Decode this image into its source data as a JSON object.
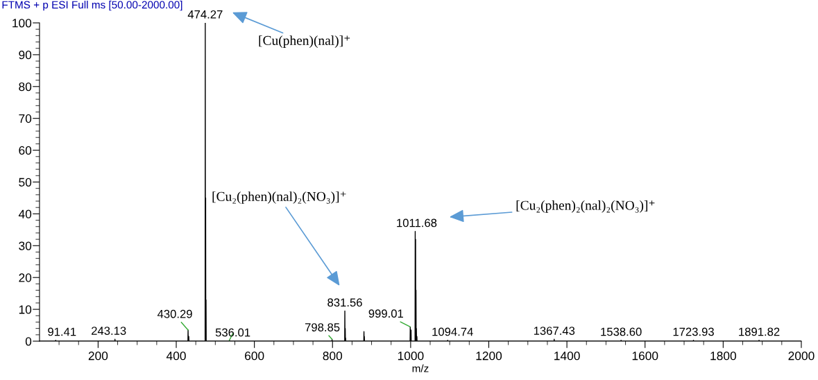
{
  "chart_data": {
    "type": "line",
    "title": "FTMS + p ESI Full ms [50.00-2000.00]",
    "xlabel": "m/z",
    "series": [
      {
        "color": "#000000",
        "x": [
          50,
          91.0,
          91.41,
          91.8,
          242.7,
          243.13,
          243.6,
          429.9,
          430.29,
          430.7,
          431.6,
          432.0,
          432.4,
          473.9,
          474.27,
          474.7,
          474.9,
          475.27,
          475.7,
          475.9,
          476.27,
          476.7,
          535.6,
          536.01,
          536.4,
          798.4,
          798.85,
          799.3,
          831.2,
          831.56,
          832.0,
          832.2,
          832.56,
          833.0,
          833.2,
          833.5,
          833.9,
          880.1,
          880.5,
          880.9,
          881.1,
          881.5,
          881.9,
          998.6,
          999.01,
          999.4,
          1000.6,
          1001.0,
          1001.4,
          1011.3,
          1011.68,
          1012.1,
          1012.3,
          1012.68,
          1013.1,
          1013.3,
          1013.68,
          1014.1,
          1014.3,
          1014.68,
          1015.1,
          1015.6,
          1016.0,
          1016.4,
          1094.3,
          1094.74,
          1095.2,
          1367.0,
          1367.43,
          1367.9,
          1538.2,
          1538.6,
          1539.0,
          1723.5,
          1723.93,
          1724.4,
          1891.4,
          1891.82,
          1892.2,
          2000
        ],
        "values": [
          0,
          0,
          0.3,
          0,
          0,
          0.6,
          0,
          0,
          3.5,
          0,
          0,
          1.5,
          0,
          0,
          100,
          0,
          0,
          45,
          0,
          0,
          13,
          0,
          0,
          0.3,
          0,
          0,
          0.6,
          0,
          0,
          9.5,
          0,
          0,
          4,
          0,
          0,
          1,
          0,
          0,
          3,
          0,
          0,
          1.5,
          0,
          0,
          4.5,
          0,
          0,
          3.5,
          0,
          0,
          34.5,
          0,
          0,
          32,
          0,
          0,
          16,
          0,
          0,
          4,
          0,
          0,
          1.5,
          0,
          0,
          0.3,
          0,
          0,
          0.6,
          0,
          0,
          0.3,
          0,
          0,
          0.3,
          0,
          0,
          0.3,
          0,
          0
        ]
      }
    ],
    "xlim": [
      50,
      2000
    ],
    "ylim": [
      0,
      100
    ],
    "xticks": [
      {
        "value": 100,
        "label": null
      },
      {
        "value": 150,
        "label": null
      },
      200,
      {
        "value": 250,
        "label": null
      },
      {
        "value": 300,
        "label": null
      },
      {
        "value": 350,
        "label": null
      },
      400,
      {
        "value": 450,
        "label": null
      },
      {
        "value": 500,
        "label": null
      },
      {
        "value": 550,
        "label": null
      },
      600,
      {
        "value": 650,
        "label": null
      },
      {
        "value": 700,
        "label": null
      },
      {
        "value": 750,
        "label": null
      },
      800,
      {
        "value": 850,
        "label": null
      },
      {
        "value": 900,
        "label": null
      },
      {
        "value": 950,
        "label": null
      },
      1000,
      {
        "value": 1050,
        "label": null
      },
      {
        "value": 1100,
        "label": null
      },
      {
        "value": 1150,
        "label": null
      },
      1200,
      {
        "value": 1250,
        "label": null
      },
      {
        "value": 1300,
        "label": null
      },
      {
        "value": 1350,
        "label": null
      },
      1400,
      {
        "value": 1450,
        "label": null
      },
      {
        "value": 1500,
        "label": null
      },
      {
        "value": 1550,
        "label": null
      },
      1600,
      {
        "value": 1650,
        "label": null
      },
      {
        "value": 1700,
        "label": null
      },
      {
        "value": 1750,
        "label": null
      },
      1800,
      {
        "value": 1850,
        "label": null
      },
      {
        "value": 1900,
        "label": null
      },
      {
        "value": 1950,
        "label": null
      },
      2000
    ],
    "yticks": [
      0,
      {
        "value": 2,
        "label": null
      },
      {
        "value": 4,
        "label": null
      },
      {
        "value": 6,
        "label": null
      },
      {
        "value": 8,
        "label": null
      },
      10,
      {
        "value": 12,
        "label": null
      },
      {
        "value": 14,
        "label": null
      },
      {
        "value": 16,
        "label": null
      },
      {
        "value": 18,
        "label": null
      },
      20,
      {
        "value": 22,
        "label": null
      },
      {
        "value": 24,
        "label": null
      },
      {
        "value": 26,
        "label": null
      },
      {
        "value": 28,
        "label": null
      },
      30,
      {
        "value": 32,
        "label": null
      },
      {
        "value": 34,
        "label": null
      },
      {
        "value": 36,
        "label": null
      },
      {
        "value": 38,
        "label": null
      },
      40,
      {
        "value": 42,
        "label": null
      },
      {
        "value": 44,
        "label": null
      },
      {
        "value": 46,
        "label": null
      },
      {
        "value": 48,
        "label": null
      },
      50,
      {
        "value": 52,
        "label": null
      },
      {
        "value": 54,
        "label": null
      },
      {
        "value": 56,
        "label": null
      },
      {
        "value": 58,
        "label": null
      },
      60,
      {
        "value": 62,
        "label": null
      },
      {
        "value": 64,
        "label": null
      },
      {
        "value": 66,
        "label": null
      },
      {
        "value": 68,
        "label": null
      },
      70,
      {
        "value": 72,
        "label": null
      },
      {
        "value": 74,
        "label": null
      },
      {
        "value": 76,
        "label": null
      },
      {
        "value": 78,
        "label": null
      },
      80,
      {
        "value": 82,
        "label": null
      },
      {
        "value": 84,
        "label": null
      },
      {
        "value": 86,
        "label": null
      },
      {
        "value": 88,
        "label": null
      },
      90,
      {
        "value": 92,
        "label": null
      },
      {
        "value": 94,
        "label": null
      },
      {
        "value": 96,
        "label": null
      },
      {
        "value": 98,
        "label": null
      },
      100
    ],
    "grid": false,
    "legend": false,
    "marker": "none",
    "line_style": "solid",
    "annotations": [
      {
        "text": "91.41",
        "x": 91.41,
        "y": 0.3
      },
      {
        "text": "243.13",
        "x": 243.13,
        "y": 0.6
      },
      {
        "text": "430.29",
        "x": 430.29,
        "y": 3.5
      },
      {
        "text": "474.27",
        "x": 474.27,
        "y": 100
      },
      {
        "text": "536.01",
        "x": 536.01,
        "y": 0.3
      },
      {
        "text": "798.85",
        "x": 798.85,
        "y": 0.6
      },
      {
        "text": "831.56",
        "x": 831.56,
        "y": 9.5
      },
      {
        "text": "999.01",
        "x": 999.01,
        "y": 4.5
      },
      {
        "text": "1011.68",
        "x": 1011.68,
        "y": 34.5
      },
      {
        "text": "1094.74",
        "x": 1094.74,
        "y": 0.3
      },
      {
        "text": "1367.43",
        "x": 1367.43,
        "y": 0.6
      },
      {
        "text": "1538.60",
        "x": 1538.6,
        "y": 0.3
      },
      {
        "text": "1723.93",
        "x": 1723.93,
        "y": 0.3
      },
      {
        "text": "1891.82",
        "x": 1891.82,
        "y": 0.3
      },
      "[Cu(phen)(nal)]⁺",
      "[Cu₂(phen)(nal)₂(NO₃)]⁺",
      "[Cu₂(phen)₂(nal)₂(NO₃)]⁺"
    ]
  }
}
